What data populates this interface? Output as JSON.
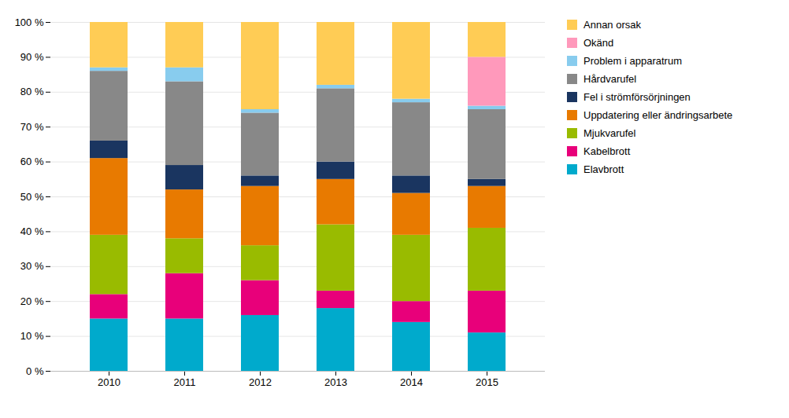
{
  "chart_data": {
    "type": "bar",
    "stacked": true,
    "categories": [
      "2010",
      "2011",
      "2012",
      "2013",
      "2014",
      "2015"
    ],
    "series": [
      {
        "name": "Elavbrott",
        "color": "#00AACC",
        "values": [
          15,
          15,
          16,
          18,
          14,
          11
        ]
      },
      {
        "name": "Kabelbrott",
        "color": "#E8007A",
        "values": [
          7,
          13,
          10,
          5,
          6,
          12
        ]
      },
      {
        "name": "Mjukvarufel",
        "color": "#99BB00",
        "values": [
          17,
          10,
          10,
          19,
          19,
          18
        ]
      },
      {
        "name": "Uppdatering eller ändringsarbete",
        "color": "#E87A00",
        "values": [
          22,
          14,
          17,
          13,
          12,
          12
        ]
      },
      {
        "name": "Fel i strömförsörjningen",
        "color": "#1A3560",
        "values": [
          5,
          7,
          3,
          5,
          5,
          2
        ]
      },
      {
        "name": "Hårdvarufel",
        "color": "#888888",
        "values": [
          20,
          24,
          18,
          21,
          21,
          20
        ]
      },
      {
        "name": "Problem i apparatrum",
        "color": "#88CCEE",
        "values": [
          1,
          4,
          1,
          1,
          1,
          1
        ]
      },
      {
        "name": "Okänd",
        "color": "#FF99BB",
        "values": [
          0,
          0,
          0,
          0,
          0,
          14
        ]
      },
      {
        "name": "Annan orsak",
        "color": "#FFCC55",
        "values": [
          13,
          13,
          25,
          18,
          22,
          10
        ]
      }
    ],
    "ylim": [
      0,
      100
    ],
    "yticks": [
      {
        "value": 0,
        "label": "0 %"
      },
      {
        "value": 10,
        "label": "10 %"
      },
      {
        "value": 20,
        "label": "20 %"
      },
      {
        "value": 30,
        "label": "30 %"
      },
      {
        "value": 40,
        "label": "40 %"
      },
      {
        "value": 50,
        "label": "50 %"
      },
      {
        "value": 60,
        "label": "60 %"
      },
      {
        "value": 70,
        "label": "70 %"
      },
      {
        "value": 80,
        "label": "80 %"
      },
      {
        "value": 90,
        "label": "90 %"
      },
      {
        "value": 100,
        "label": "100 %"
      }
    ],
    "grid": true,
    "legend": "right"
  }
}
